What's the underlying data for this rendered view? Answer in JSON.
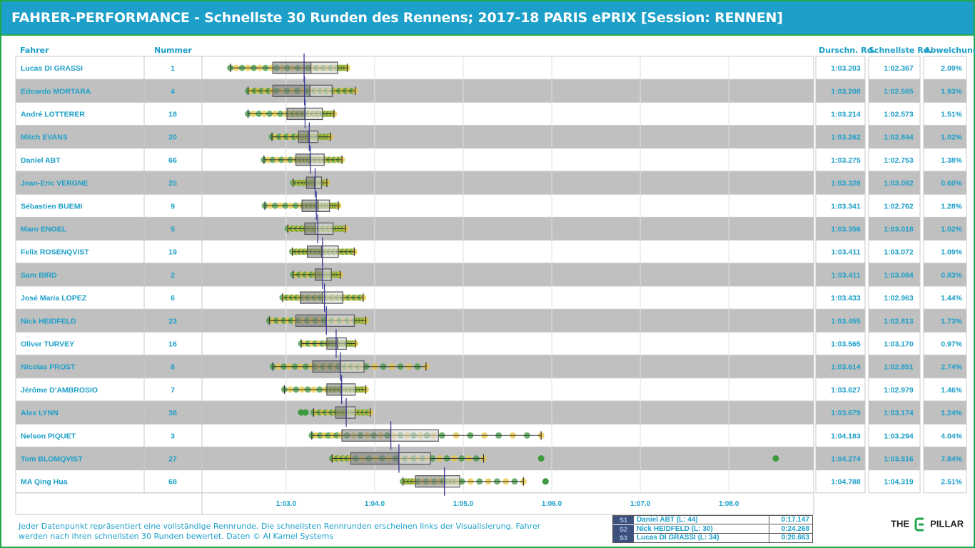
{
  "header": {
    "title": "FAHRER-PERFORMANCE - Schnellste 30 Runden des Rennens; 2017-18 PARIS ePRIX [Session: RENNEN]"
  },
  "columns": {
    "driver": "Fahrer",
    "number": "Nummer",
    "avg": "Durschn. Rd.",
    "best": "Schnellste Rd.",
    "dev": "Abweichung"
  },
  "footnote": "Jeder Datenpunkt repräsentiert eine vollständige Rennrunde. Die schnellsten Rennrunden erscheinen links der Visualisierung. Fahrer werden nach ihren schnellsten 30 Runden bewertet. Daten © Al Kamel Systems",
  "sectors": [
    {
      "tag": "S1",
      "name": "Daniel ABT (L: 44)",
      "time": "0:17.147"
    },
    {
      "tag": "S2",
      "name": "Nick HEIDFELD (L: 30)",
      "time": "0:24.268"
    },
    {
      "tag": "S3",
      "name": "Lucas DI GRASSI (L: 34)",
      "time": "0:20.663"
    }
  ],
  "logo": {
    "left": "THE",
    "right": "PILLAR",
    "icon": "e-pillar-icon"
  },
  "colors": {
    "accent": "#1c9fc9",
    "green": "#1fa84a",
    "row_alt": "#c0c0c0",
    "point_green": "#3d9a3d",
    "point_yellow": "#e8c53a",
    "median": "#3b3b9a"
  },
  "chart_data": {
    "type": "box",
    "x_ticks": [
      "1:03.0",
      "1:04.0",
      "1:05.0",
      "1:06.0",
      "1:07.0",
      "1:08.0"
    ],
    "x_tick_values": [
      63.0,
      64.0,
      65.0,
      66.0,
      67.0,
      68.0
    ],
    "xlim": [
      62.05,
      68.95
    ],
    "grid": true,
    "drivers": [
      {
        "name": "Lucas DI GRASSI",
        "number": "1",
        "avg": "1:03.203",
        "best": "1:02.367",
        "dev": "2.09%",
        "avg_s": 63.203,
        "q1": 62.85,
        "median": 63.28,
        "q3": 63.58,
        "min": 62.37,
        "max": 63.69,
        "spread": 1.33,
        "outliers": []
      },
      {
        "name": "Edoardo MORTARA",
        "number": "4",
        "avg": "1:03.208",
        "best": "1:02.565",
        "dev": "1.93%",
        "avg_s": 63.208,
        "q1": 62.85,
        "median": 63.27,
        "q3": 63.52,
        "min": 62.57,
        "max": 63.78,
        "spread": 1.21,
        "outliers": []
      },
      {
        "name": "André LOTTERER",
        "number": "18",
        "avg": "1:03.214",
        "best": "1:02.573",
        "dev": "1.51%",
        "avg_s": 63.214,
        "q1": 63.01,
        "median": 63.21,
        "q3": 63.41,
        "min": 62.57,
        "max": 63.54,
        "spread": 0.97,
        "outliers": []
      },
      {
        "name": "Mitch EVANS",
        "number": "20",
        "avg": "1:03.262",
        "best": "1:02.844",
        "dev": "1.02%",
        "avg_s": 63.262,
        "q1": 63.14,
        "median": 63.25,
        "q3": 63.36,
        "min": 62.84,
        "max": 63.5,
        "spread": 0.66,
        "outliers": []
      },
      {
        "name": "Daniel ABT",
        "number": "66",
        "avg": "1:03.275",
        "best": "1:02.753",
        "dev": "1.38%",
        "avg_s": 63.275,
        "q1": 63.11,
        "median": 63.27,
        "q3": 63.43,
        "min": 62.75,
        "max": 63.63,
        "spread": 0.88,
        "outliers": []
      },
      {
        "name": "Jean-Eric VERGNE",
        "number": "25",
        "avg": "1:03.328",
        "best": "1:03.082",
        "dev": "0.60%",
        "avg_s": 63.328,
        "q1": 63.23,
        "median": 63.32,
        "q3": 63.4,
        "min": 63.08,
        "max": 63.46,
        "spread": 0.38,
        "outliers": []
      },
      {
        "name": "Sébastien BUEMI",
        "number": "9",
        "avg": "1:03.341",
        "best": "1:02.762",
        "dev": "1.28%",
        "avg_s": 63.341,
        "q1": 63.18,
        "median": 63.36,
        "q3": 63.49,
        "min": 62.76,
        "max": 63.59,
        "spread": 0.83,
        "outliers": []
      },
      {
        "name": "Maro ENGEL",
        "number": "5",
        "avg": "1:03.356",
        "best": "1:03.018",
        "dev": "1.02%",
        "avg_s": 63.356,
        "q1": 63.21,
        "median": 63.33,
        "q3": 63.53,
        "min": 63.02,
        "max": 63.67,
        "spread": 0.65,
        "outliers": []
      },
      {
        "name": "Felix ROSENQVIST",
        "number": "19",
        "avg": "1:03.411",
        "best": "1:03.072",
        "dev": "1.09%",
        "avg_s": 63.411,
        "q1": 63.24,
        "median": 63.4,
        "q3": 63.59,
        "min": 63.07,
        "max": 63.77,
        "spread": 0.7,
        "outliers": []
      },
      {
        "name": "Sam BIRD",
        "number": "2",
        "avg": "1:03.411",
        "best": "1:03.084",
        "dev": "0.83%",
        "avg_s": 63.411,
        "q1": 63.33,
        "median": 63.41,
        "q3": 63.51,
        "min": 63.08,
        "max": 63.61,
        "spread": 0.53,
        "outliers": []
      },
      {
        "name": "José Maria LOPEZ",
        "number": "6",
        "avg": "1:03.433",
        "best": "1:02.963",
        "dev": "1.44%",
        "avg_s": 63.433,
        "q1": 63.16,
        "median": 63.41,
        "q3": 63.64,
        "min": 62.96,
        "max": 63.87,
        "spread": 0.91,
        "outliers": []
      },
      {
        "name": "Nick HEIDFELD",
        "number": "23",
        "avg": "1:03.455",
        "best": "1:02.813",
        "dev": "1.73%",
        "avg_s": 63.455,
        "q1": 63.11,
        "median": 63.45,
        "q3": 63.77,
        "min": 62.81,
        "max": 63.9,
        "spread": 1.09,
        "outliers": []
      },
      {
        "name": "Oliver TURVEY",
        "number": "16",
        "avg": "1:03.565",
        "best": "1:03.170",
        "dev": "0.97%",
        "avg_s": 63.565,
        "q1": 63.46,
        "median": 63.58,
        "q3": 63.68,
        "min": 63.17,
        "max": 63.78,
        "spread": 0.61,
        "outliers": []
      },
      {
        "name": "Nicolas PROST",
        "number": "8",
        "avg": "1:03.614",
        "best": "1:02.851",
        "dev": "2.74%",
        "avg_s": 63.614,
        "q1": 63.3,
        "median": 63.61,
        "q3": 63.88,
        "min": 62.85,
        "max": 64.58,
        "spread": 1.73,
        "outliers": []
      },
      {
        "name": "Jérôme D'AMBROSIO",
        "number": "7",
        "avg": "1:03.627",
        "best": "1:02.979",
        "dev": "1.46%",
        "avg_s": 63.627,
        "q1": 63.46,
        "median": 63.62,
        "q3": 63.78,
        "min": 62.98,
        "max": 63.9,
        "spread": 0.92,
        "outliers": []
      },
      {
        "name": "Alex LYNN",
        "number": "36",
        "avg": "1:03.679",
        "best": "1:03.174",
        "dev": "1.24%",
        "avg_s": 63.679,
        "q1": 63.56,
        "median": 63.68,
        "q3": 63.78,
        "min": 63.31,
        "max": 63.95,
        "spread": 0.78,
        "outliers": [
          63.17,
          63.22
        ]
      },
      {
        "name": "Nelson PIQUET",
        "number": "3",
        "avg": "1:04.183",
        "best": "1:03.294",
        "dev": "4.04%",
        "avg_s": 64.183,
        "q1": 63.63,
        "median": 64.18,
        "q3": 64.72,
        "min": 63.29,
        "max": 65.88,
        "spread": 2.59,
        "outliers": []
      },
      {
        "name": "Tom BLOMQVIST",
        "number": "27",
        "avg": "1:04.274",
        "best": "1:03.516",
        "dev": "7.84%",
        "avg_s": 64.274,
        "q1": 63.73,
        "median": 64.27,
        "q3": 64.63,
        "min": 63.52,
        "max": 65.23,
        "spread": 1.71,
        "outliers": [
          65.88,
          68.53
        ]
      },
      {
        "name": "MA Qing Hua",
        "number": "68",
        "avg": "1:04.788",
        "best": "1:04.319",
        "dev": "2.51%",
        "avg_s": 64.788,
        "q1": 64.46,
        "median": 64.79,
        "q3": 64.96,
        "min": 64.32,
        "max": 65.68,
        "spread": 1.36,
        "outliers": [
          65.93
        ]
      }
    ]
  }
}
